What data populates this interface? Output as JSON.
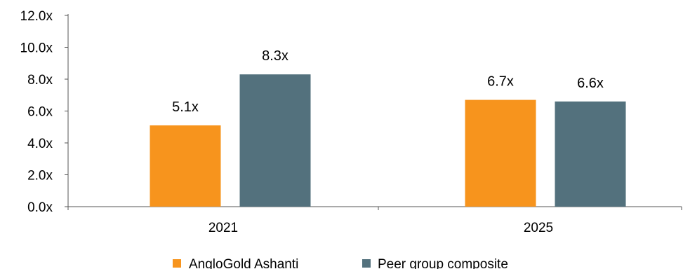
{
  "chart_data": {
    "type": "bar",
    "categories": [
      "2021",
      "2025"
    ],
    "series": [
      {
        "name": "AngloGold Ashanti",
        "values": [
          5.1,
          6.7
        ],
        "labels": [
          "5.1x",
          "6.7x"
        ],
        "color": "#F7941D"
      },
      {
        "name": "Peer group composite",
        "values": [
          8.3,
          6.6
        ],
        "labels": [
          "8.3x",
          "6.6x"
        ],
        "color": "#53717D"
      }
    ],
    "ylim": [
      0,
      12
    ],
    "yticks": [
      0,
      2,
      4,
      6,
      8,
      10,
      12
    ],
    "ytick_labels": [
      "0.0x",
      "2.0x",
      "4.0x",
      "6.0x",
      "8.0x",
      "10.0x",
      "12.0x"
    ],
    "grid": false,
    "legend_position": "bottom-center",
    "title": "",
    "xlabel": "",
    "ylabel": ""
  }
}
